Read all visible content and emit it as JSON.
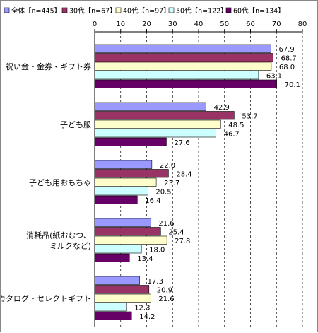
{
  "chart_data": {
    "type": "bar",
    "orientation": "horizontal",
    "title": "",
    "xlabel": "",
    "ylabel": "",
    "xlim": [
      0,
      80
    ],
    "x_ticks": [
      "0",
      "10",
      "20",
      "30",
      "40",
      "50",
      "60",
      "70",
      "80"
    ],
    "grid": "vertical dashed",
    "legend_position": "top",
    "categories": [
      {
        "label_lines": [
          "祝い金・金券・ギフト券"
        ]
      },
      {
        "label_lines": [
          "子ども服"
        ]
      },
      {
        "label_lines": [
          "子ども用おもちゃ"
        ]
      },
      {
        "label_lines": [
          "消耗品(紙おむつ、",
          "ミルクなど)"
        ]
      },
      {
        "label_lines": [
          "カタログ・セレクトギフト"
        ]
      }
    ],
    "series": [
      {
        "name": "全体【n=445】",
        "color": "#9999ff",
        "values": [
          67.9,
          42.9,
          22.0,
          21.6,
          17.3
        ]
      },
      {
        "name": "30代【n=67】",
        "color": "#993366",
        "values": [
          68.7,
          53.7,
          28.4,
          25.4,
          20.9
        ]
      },
      {
        "name": "40代【n=97】",
        "color": "#ffffcc",
        "values": [
          68.0,
          48.5,
          23.7,
          27.8,
          21.6
        ]
      },
      {
        "name": "50代【n=122】",
        "color": "#ccffff",
        "values": [
          63.1,
          46.7,
          20.5,
          18.0,
          12.3
        ]
      },
      {
        "name": "60代【n=134】",
        "color": "#660066",
        "values": [
          70.1,
          27.6,
          16.4,
          13.4,
          14.2
        ]
      }
    ]
  }
}
